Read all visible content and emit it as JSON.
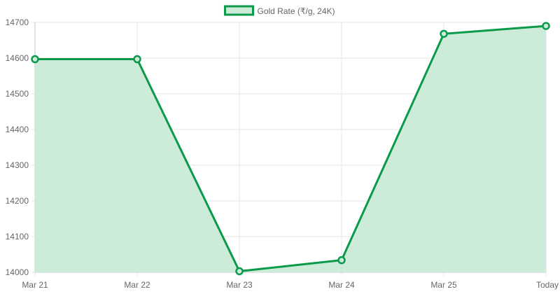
{
  "chart_data": {
    "type": "area",
    "categories": [
      "Mar 21",
      "Mar 22",
      "Mar 23",
      "Mar 24",
      "Mar 25",
      "Today"
    ],
    "series": [
      {
        "name": "Gold Rate (₹/g, 24K)",
        "values": [
          14597,
          14597,
          14003,
          14034,
          14668,
          14690
        ]
      }
    ],
    "ylim": [
      14000,
      14700
    ],
    "yticks": [
      14000,
      14100,
      14200,
      14300,
      14400,
      14500,
      14600,
      14700
    ],
    "grid": true,
    "legend_position": "top-center",
    "colors": {
      "line": "#0b9a4a",
      "fill": "#cdebd9",
      "grid": "#e6e6e6",
      "axis": "#c8c8c8"
    }
  }
}
